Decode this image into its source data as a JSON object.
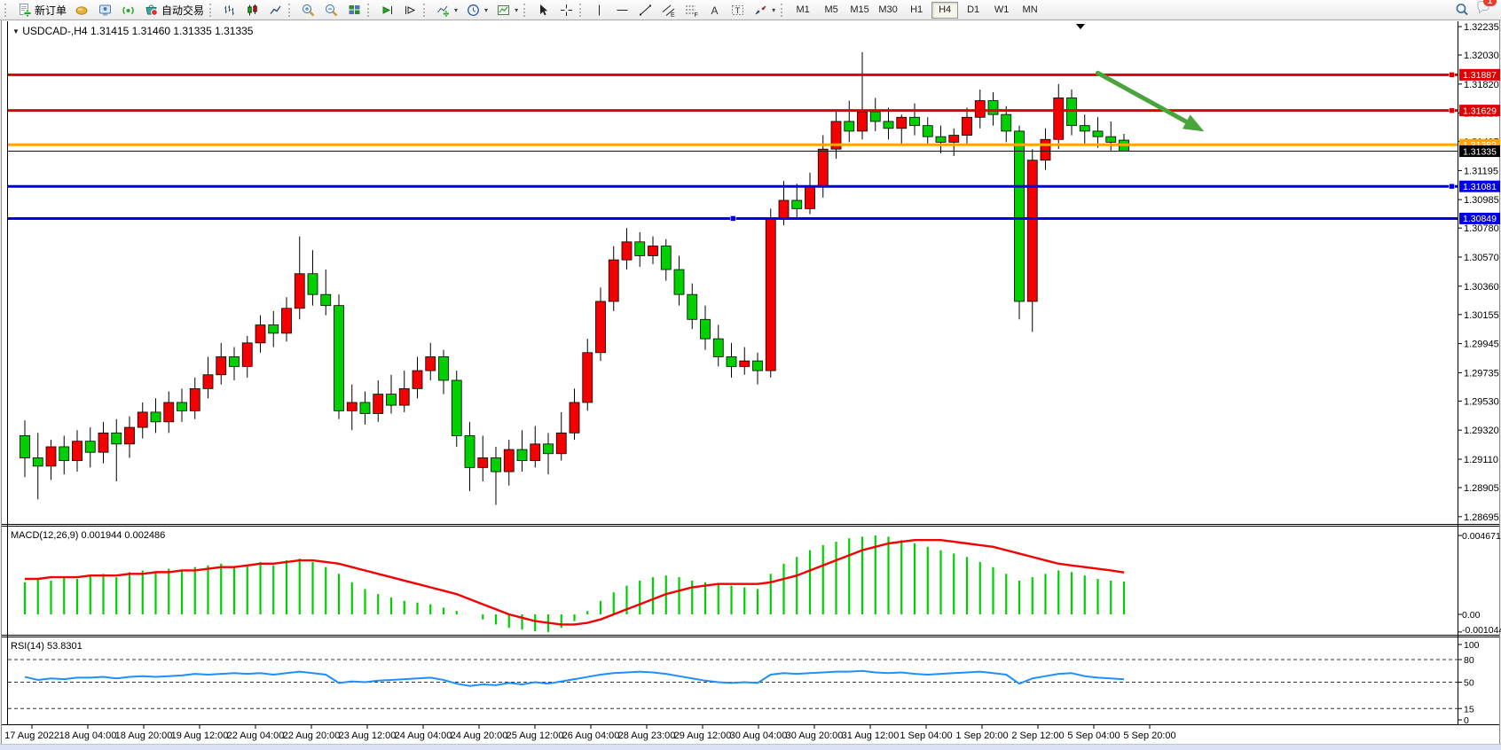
{
  "toolbar": {
    "new_order": "新订单",
    "auto_trading": "自动交易",
    "dropdown_glyph": "▾",
    "tool_letters": {
      "channel": "E",
      "fibo": "F",
      "text": "A",
      "label": "T"
    },
    "timeframes": [
      "M1",
      "M5",
      "M15",
      "M30",
      "H1",
      "H4",
      "D1",
      "W1",
      "MN"
    ],
    "active_timeframe": "H4",
    "notification_badge": "1"
  },
  "chart": {
    "symbol_label": "USDCAD-,H4",
    "ohlc_label": "1.31415 1.31460 1.31335 1.31335",
    "symbol_dropdown_glyph": "▼"
  },
  "chart_data": {
    "type": "candlestick",
    "symbol": "USDCAD-",
    "timeframe": "H4",
    "current_bar": {
      "open": 1.31415,
      "high": 1.3146,
      "low": 1.31335,
      "close": 1.31335
    },
    "up_color": "#f40000",
    "down_color": "#00cf00",
    "price_axis_ticks": [
      "1.32235",
      "1.32030",
      "1.31820",
      "1.31610",
      "1.31405",
      "1.31195",
      "1.30985",
      "1.30780",
      "1.30570",
      "1.30360",
      "1.30155",
      "1.29945",
      "1.29735",
      "1.29530",
      "1.29320",
      "1.29110",
      "1.28905",
      "1.28695"
    ],
    "price_range": {
      "top": 1.32235,
      "bottom": 1.28695
    },
    "hlines": [
      {
        "price": 1.31887,
        "label": "1.31887",
        "color": "#e00000",
        "width": 3,
        "handles": [
          "right"
        ]
      },
      {
        "price": 1.31629,
        "label": "1.31629",
        "color": "#e00000",
        "width": 3,
        "handles": [
          "right"
        ]
      },
      {
        "price": 1.31382,
        "label": "1.31382",
        "color": "#ffa500",
        "width": 3,
        "handles": []
      },
      {
        "price": 1.31081,
        "label": "1.31081",
        "color": "#0000e0",
        "width": 3,
        "handles": [
          "right"
        ]
      },
      {
        "price": 1.30849,
        "label": "1.30849",
        "color": "#0000e0",
        "width": 3,
        "handles": [
          "center"
        ]
      }
    ],
    "bid_line": {
      "price": 1.31335,
      "label": "1.31335",
      "color": "#111111"
    },
    "arrow": {
      "color": "#4aa43c",
      "bar_start": 82.0,
      "price_start": 1.319,
      "bar_end": 89.3,
      "price_end": 1.3152
    },
    "candles": [
      [
        1.2928,
        1.2939,
        1.2898,
        1.2912
      ],
      [
        1.2912,
        1.293,
        1.2882,
        1.2906
      ],
      [
        1.2906,
        1.2925,
        1.2896,
        1.292
      ],
      [
        1.292,
        1.2928,
        1.29,
        1.291
      ],
      [
        1.291,
        1.2932,
        1.2902,
        1.2924
      ],
      [
        1.2924,
        1.2934,
        1.2905,
        1.2916
      ],
      [
        1.2916,
        1.2938,
        1.2908,
        1.293
      ],
      [
        1.293,
        1.294,
        1.2895,
        1.2922
      ],
      [
        1.2922,
        1.2942,
        1.2912,
        1.2934
      ],
      [
        1.2934,
        1.2952,
        1.2926,
        1.2945
      ],
      [
        1.2945,
        1.2955,
        1.293,
        1.2938
      ],
      [
        1.2938,
        1.296,
        1.293,
        1.2952
      ],
      [
        1.2952,
        1.2962,
        1.2938,
        1.2946
      ],
      [
        1.2946,
        1.297,
        1.294,
        1.2962
      ],
      [
        1.2962,
        1.2985,
        1.2955,
        1.2972
      ],
      [
        1.2972,
        1.2995,
        1.2965,
        1.2985
      ],
      [
        1.2985,
        1.2992,
        1.2968,
        1.2978
      ],
      [
        1.2978,
        1.3,
        1.297,
        1.2995
      ],
      [
        1.2995,
        1.3015,
        1.2988,
        1.3008
      ],
      [
        1.3008,
        1.3018,
        1.2992,
        1.3002
      ],
      [
        1.3002,
        1.3028,
        1.2996,
        1.302
      ],
      [
        1.302,
        1.3072,
        1.3012,
        1.3045
      ],
      [
        1.3045,
        1.3062,
        1.3022,
        1.303
      ],
      [
        1.303,
        1.3048,
        1.3015,
        1.3022
      ],
      [
        1.3022,
        1.303,
        1.294,
        1.2946
      ],
      [
        1.2946,
        1.2965,
        1.2932,
        1.2952
      ],
      [
        1.2952,
        1.296,
        1.2936,
        1.2944
      ],
      [
        1.2944,
        1.2968,
        1.2938,
        1.2958
      ],
      [
        1.2958,
        1.2972,
        1.2944,
        1.295
      ],
      [
        1.295,
        1.2975,
        1.2945,
        1.2962
      ],
      [
        1.2962,
        1.2985,
        1.2955,
        1.2975
      ],
      [
        1.2975,
        1.2995,
        1.2968,
        1.2985
      ],
      [
        1.2985,
        1.299,
        1.2958,
        1.2968
      ],
      [
        1.2968,
        1.2975,
        1.292,
        1.2928
      ],
      [
        1.2928,
        1.2938,
        1.2888,
        1.2905
      ],
      [
        1.2905,
        1.2928,
        1.2895,
        1.2912
      ],
      [
        1.2912,
        1.292,
        1.2878,
        1.2902
      ],
      [
        1.2902,
        1.2925,
        1.2892,
        1.2918
      ],
      [
        1.2918,
        1.2932,
        1.2902,
        1.291
      ],
      [
        1.291,
        1.2935,
        1.2905,
        1.2922
      ],
      [
        1.2922,
        1.293,
        1.29,
        1.2915
      ],
      [
        1.2915,
        1.2945,
        1.291,
        1.293
      ],
      [
        1.293,
        1.2962,
        1.2925,
        1.2952
      ],
      [
        1.2952,
        1.2998,
        1.2946,
        1.2988
      ],
      [
        1.2988,
        1.3035,
        1.2982,
        1.3025
      ],
      [
        1.3025,
        1.3065,
        1.3018,
        1.3055
      ],
      [
        1.3055,
        1.3078,
        1.3048,
        1.3068
      ],
      [
        1.3068,
        1.3075,
        1.305,
        1.3058
      ],
      [
        1.3058,
        1.3072,
        1.3052,
        1.3065
      ],
      [
        1.3065,
        1.307,
        1.304,
        1.3048
      ],
      [
        1.3048,
        1.3058,
        1.3022,
        1.303
      ],
      [
        1.303,
        1.3038,
        1.3005,
        1.3012
      ],
      [
        1.3012,
        1.3022,
        1.299,
        1.2998
      ],
      [
        1.2998,
        1.3008,
        1.2978,
        1.2985
      ],
      [
        1.2985,
        1.2995,
        1.297,
        1.2978
      ],
      [
        1.2978,
        1.2992,
        1.2972,
        1.2982
      ],
      [
        1.2982,
        1.2988,
        1.2965,
        1.2975
      ],
      [
        1.2975,
        1.3092,
        1.297,
        1.3085
      ],
      [
        1.3085,
        1.3112,
        1.308,
        1.3098
      ],
      [
        1.3098,
        1.311,
        1.3085,
        1.3092
      ],
      [
        1.3092,
        1.3118,
        1.3088,
        1.3108
      ],
      [
        1.3108,
        1.3145,
        1.31,
        1.3135
      ],
      [
        1.3135,
        1.3162,
        1.3128,
        1.3155
      ],
      [
        1.3155,
        1.317,
        1.314,
        1.3148
      ],
      [
        1.3148,
        1.3205,
        1.3142,
        1.3162
      ],
      [
        1.3162,
        1.3172,
        1.3148,
        1.3155
      ],
      [
        1.3155,
        1.3165,
        1.3142,
        1.315
      ],
      [
        1.315,
        1.316,
        1.3138,
        1.3158
      ],
      [
        1.3158,
        1.3168,
        1.3145,
        1.3152
      ],
      [
        1.3152,
        1.3158,
        1.3138,
        1.3144
      ],
      [
        1.3144,
        1.3152,
        1.3132,
        1.314
      ],
      [
        1.314,
        1.315,
        1.313,
        1.3145
      ],
      [
        1.3145,
        1.3165,
        1.3138,
        1.3158
      ],
      [
        1.3158,
        1.3178,
        1.315,
        1.317
      ],
      [
        1.317,
        1.3176,
        1.3152,
        1.316
      ],
      [
        1.316,
        1.3166,
        1.314,
        1.3148
      ],
      [
        1.3148,
        1.3152,
        1.3012,
        1.3025
      ],
      [
        1.3025,
        1.3135,
        1.3003,
        1.3127
      ],
      [
        1.3127,
        1.315,
        1.312,
        1.3142
      ],
      [
        1.3142,
        1.3182,
        1.3135,
        1.3172
      ],
      [
        1.3172,
        1.3178,
        1.3145,
        1.3152
      ],
      [
        1.3152,
        1.316,
        1.3138,
        1.3148
      ],
      [
        1.3148,
        1.3158,
        1.3136,
        1.3144
      ],
      [
        1.3144,
        1.3155,
        1.3134,
        1.314
      ],
      [
        1.31415,
        1.3146,
        1.31335,
        1.31335
      ]
    ],
    "macd": {
      "display_label": "MACD(12,26,9) 0.001944 0.002486",
      "current_macd": 0.001944,
      "current_signal": 0.002486,
      "axis_ticks": [
        "0.004671",
        "0.00",
        "-0.001044"
      ],
      "axis_tick_values": [
        0.004671,
        0,
        -0.001044
      ],
      "histogram_color": "#00cf00",
      "signal_color": "#f40000",
      "histogram": [
        0.0019,
        0.0021,
        0.002,
        0.0022,
        0.0021,
        0.0023,
        0.0024,
        0.0022,
        0.0025,
        0.0026,
        0.0025,
        0.0027,
        0.0026,
        0.0028,
        0.0029,
        0.003,
        0.0028,
        0.0029,
        0.0031,
        0.0029,
        0.0032,
        0.0033,
        0.0031,
        0.0028,
        0.0024,
        0.0019,
        0.0015,
        0.0012,
        0.001,
        0.0008,
        0.0007,
        0.0006,
        0.0004,
        0.0002,
        0.0,
        -0.0003,
        -0.0006,
        -0.0008,
        -0.0009,
        -0.001,
        -0.001044,
        -0.0008,
        -0.0004,
        0.0002,
        0.0008,
        0.0013,
        0.0017,
        0.002,
        0.0022,
        0.0023,
        0.0022,
        0.002,
        0.0019,
        0.0018,
        0.0017,
        0.0016,
        0.0015,
        0.0024,
        0.003,
        0.0034,
        0.0038,
        0.0041,
        0.0043,
        0.0045,
        0.0046,
        0.004671,
        0.0046,
        0.0044,
        0.0042,
        0.004,
        0.0038,
        0.0036,
        0.0034,
        0.0031,
        0.0028,
        0.0024,
        0.002,
        0.0022,
        0.0024,
        0.0026,
        0.0025,
        0.0023,
        0.0021,
        0.002,
        0.001944
      ],
      "signal": [
        0.0021,
        0.0021,
        0.0022,
        0.0022,
        0.0022,
        0.0023,
        0.0023,
        0.0023,
        0.0024,
        0.0024,
        0.0025,
        0.0025,
        0.0026,
        0.0026,
        0.0027,
        0.0028,
        0.0028,
        0.0029,
        0.003,
        0.003,
        0.0031,
        0.0032,
        0.0032,
        0.0031,
        0.003,
        0.0028,
        0.0026,
        0.0024,
        0.0022,
        0.002,
        0.0018,
        0.0016,
        0.0014,
        0.0012,
        0.0009,
        0.0006,
        0.0003,
        0.0,
        -0.0002,
        -0.0004,
        -0.0005,
        -0.0006,
        -0.0006,
        -0.0005,
        -0.0003,
        0.0,
        0.0003,
        0.0006,
        0.0009,
        0.0012,
        0.0014,
        0.0016,
        0.0017,
        0.0018,
        0.0018,
        0.0018,
        0.0018,
        0.0019,
        0.0021,
        0.0023,
        0.0026,
        0.0029,
        0.0032,
        0.0035,
        0.0038,
        0.004,
        0.0042,
        0.0043,
        0.0044,
        0.0044,
        0.0044,
        0.0043,
        0.0042,
        0.0041,
        0.004,
        0.0038,
        0.0036,
        0.0034,
        0.0032,
        0.003,
        0.0029,
        0.0028,
        0.0027,
        0.0026,
        0.002486
      ]
    },
    "rsi": {
      "display_label": "RSI(14) 53.8301",
      "current": 53.8301,
      "axis_ticks": [
        "100",
        "80",
        "50",
        "15",
        "0"
      ],
      "axis_tick_values": [
        100,
        80,
        50,
        15,
        0
      ],
      "levels": [
        80,
        50,
        15
      ],
      "line_color": "#1f8fff",
      "values": [
        57,
        53,
        55,
        54,
        56,
        56,
        57,
        55,
        57,
        58,
        57,
        58,
        59,
        61,
        60,
        61,
        62,
        61,
        62,
        60,
        62,
        64,
        62,
        60,
        49,
        51,
        50,
        52,
        53,
        54,
        55,
        56,
        53,
        48,
        45,
        47,
        46,
        49,
        47,
        50,
        48,
        51,
        54,
        57,
        60,
        62,
        63,
        64,
        63,
        61,
        58,
        55,
        52,
        50,
        49,
        50,
        49,
        60,
        62,
        61,
        62,
        63,
        64,
        64,
        65,
        63,
        62,
        63,
        61,
        60,
        61,
        62,
        63,
        64,
        62,
        60,
        48,
        55,
        58,
        61,
        62,
        58,
        56,
        55,
        53.8301
      ]
    },
    "x_axis_labels": [
      "17 Aug 2022",
      "18 Aug 04:00",
      "18 Aug 20:00",
      "19 Aug 12:00",
      "22 Aug 04:00",
      "22 Aug 20:00",
      "23 Aug 12:00",
      "24 Aug 04:00",
      "24 Aug 20:00",
      "25 Aug 12:00",
      "26 Aug 04:00",
      "28 Aug 23:00",
      "29 Aug 12:00",
      "30 Aug 04:00",
      "30 Aug 20:00",
      "31 Aug 12:00",
      "1 Sep 04:00",
      "1 Sep 20:00",
      "2 Sep 12:00",
      "5 Sep 04:00",
      "5 Sep 20:00"
    ]
  }
}
